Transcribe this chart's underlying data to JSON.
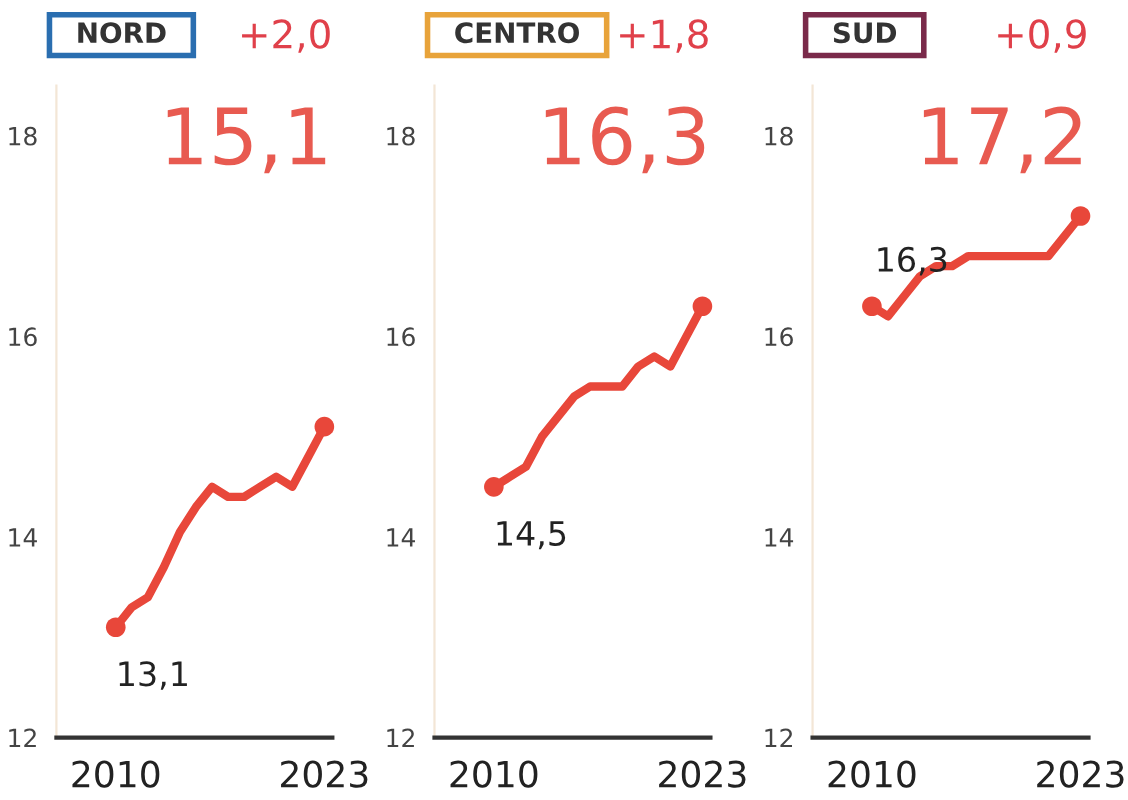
{
  "chart_data": [
    {
      "type": "line",
      "title": "NORD",
      "annotations": [
        "+2,0",
        "15,1"
      ],
      "x": [
        2010,
        2011,
        2012,
        2013,
        2014,
        2015,
        2016,
        2017,
        2018,
        2019,
        2020,
        2021,
        2022,
        2023
      ],
      "series": [
        {
          "color": "#e8473a",
          "values": [
            13.1,
            13.3,
            13.4,
            13.7,
            14.05,
            14.3,
            14.5,
            14.4,
            14.4,
            14.5,
            14.6,
            14.5,
            14.8,
            15.1
          ],
          "value_labels": [
            "13,1",
            null,
            null,
            null,
            null,
            null,
            null,
            null,
            null,
            null,
            null,
            null,
            null,
            null
          ]
        },
        {
          "type": "scatter",
          "marker": "circle",
          "color": "#e8473a",
          "values": [
            13.1,
            null,
            null,
            null,
            null,
            null,
            null,
            null,
            null,
            null,
            null,
            null,
            null,
            15.1
          ]
        }
      ],
      "xlim": [
        2006.3,
        2023.5
      ],
      "xticks": [
        2010,
        2023
      ],
      "ylim": [
        12,
        18.5
      ],
      "yticks": [
        12,
        14,
        16,
        18
      ],
      "grid": false,
      "legend": false,
      "line_style": "solid"
    },
    {
      "type": "line",
      "title": "CENTRO",
      "annotations": [
        "+1,8",
        "16,3"
      ],
      "x": [
        2010,
        2011,
        2012,
        2013,
        2014,
        2015,
        2016,
        2017,
        2018,
        2019,
        2020,
        2021,
        2022,
        2023
      ],
      "series": [
        {
          "color": "#e8473a",
          "values": [
            14.5,
            14.6,
            14.7,
            15.0,
            15.2,
            15.4,
            15.5,
            15.5,
            15.5,
            15.7,
            15.8,
            15.7,
            16.0,
            16.3
          ],
          "value_labels": [
            "14,5",
            null,
            null,
            null,
            null,
            null,
            null,
            null,
            null,
            null,
            null,
            null,
            null,
            null
          ]
        },
        {
          "type": "scatter",
          "marker": "circle",
          "color": "#e8473a",
          "values": [
            14.5,
            null,
            null,
            null,
            null,
            null,
            null,
            null,
            null,
            null,
            null,
            null,
            null,
            16.3
          ]
        }
      ],
      "xlim": [
        2006.3,
        2023.5
      ],
      "xticks": [
        2010,
        2023
      ],
      "ylim": [
        12,
        18.5
      ],
      "yticks": [
        12,
        14,
        16,
        18
      ],
      "grid": false,
      "legend": false,
      "line_style": "solid"
    },
    {
      "type": "line",
      "title": "SUD",
      "annotations": [
        "+0,9",
        "17,2"
      ],
      "x": [
        2010,
        2011,
        2012,
        2013,
        2014,
        2015,
        2016,
        2017,
        2018,
        2019,
        2020,
        2021,
        2022,
        2023
      ],
      "series": [
        {
          "color": "#e8473a",
          "values": [
            16.3,
            16.2,
            16.4,
            16.6,
            16.7,
            16.7,
            16.8,
            16.8,
            16.8,
            16.8,
            16.8,
            16.8,
            17.0,
            17.2
          ],
          "value_labels": [
            "16,3",
            null,
            null,
            null,
            null,
            null,
            null,
            null,
            null,
            null,
            null,
            null,
            null,
            null
          ]
        },
        {
          "type": "scatter",
          "marker": "circle",
          "color": "#e8473a",
          "values": [
            16.3,
            null,
            null,
            null,
            null,
            null,
            null,
            null,
            null,
            null,
            null,
            null,
            null,
            17.2
          ]
        }
      ],
      "xlim": [
        2006.3,
        2023.5
      ],
      "xticks": [
        2010,
        2023
      ],
      "ylim": [
        12,
        18.5
      ],
      "yticks": [
        12,
        14,
        16,
        18
      ],
      "grid": false,
      "legend": false,
      "line_style": "solid"
    }
  ]
}
